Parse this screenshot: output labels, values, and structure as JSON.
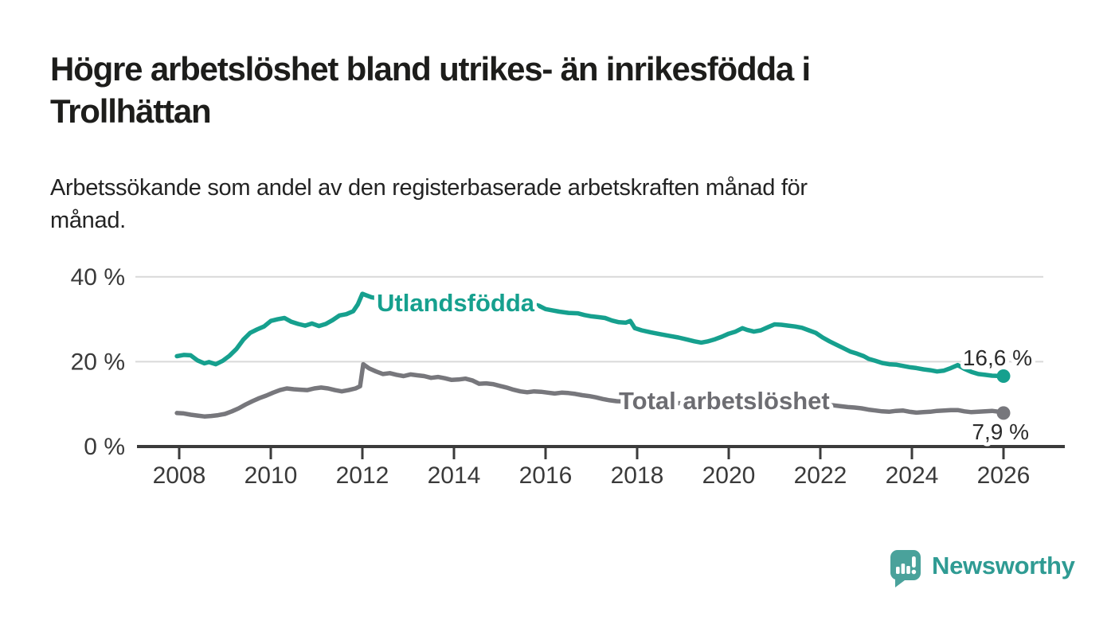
{
  "header": {
    "title_lines": [
      "Högre arbetslöshet bland utrikes- än inrikesfödda i",
      "Trollhättan"
    ],
    "subtitle_lines": [
      "Arbetssökande som andel av den registerbaserade arbetskraften månad för",
      "månad."
    ]
  },
  "footer": {
    "brand": "Newsworthy",
    "brand_color": "#2f9b93",
    "bubble_color": "#4aa29b"
  },
  "chart_data": {
    "type": "line",
    "title": "",
    "xlabel": "",
    "ylabel": "",
    "unit": "%",
    "grid": true,
    "legend_position": "inline-labels",
    "axis_color": "#3b3b3b",
    "grid_color": "#d9d9d9",
    "tick_label_color": "#3a3a3a",
    "xlim": [
      2007.6,
      2027.35
    ],
    "ylim": [
      0,
      43
    ],
    "x_ticks": [
      {
        "label": "2008",
        "value": 2008
      },
      {
        "label": "2010",
        "value": 2010
      },
      {
        "label": "2012",
        "value": 2012
      },
      {
        "label": "2014",
        "value": 2014
      },
      {
        "label": "2016",
        "value": 2016
      },
      {
        "label": "2018",
        "value": 2018
      },
      {
        "label": "2020",
        "value": 2020
      },
      {
        "label": "2022",
        "value": 2022
      },
      {
        "label": "2024",
        "value": 2024
      },
      {
        "label": "2026",
        "value": 2026
      }
    ],
    "y_ticks": [
      {
        "label": "40 %",
        "value": 40
      },
      {
        "label": "20 %",
        "value": 20
      },
      {
        "label": "0 %",
        "value": 0
      }
    ],
    "series": [
      {
        "name": "Utlandsfödda",
        "color": "#16a08e",
        "label_color": "#16a08e",
        "end_label": "16,6 %",
        "end_value": 16.6,
        "points": [
          [
            2007.95,
            21.3
          ],
          [
            2008.1,
            21.6
          ],
          [
            2008.25,
            21.5
          ],
          [
            2008.4,
            20.3
          ],
          [
            2008.55,
            19.6
          ],
          [
            2008.65,
            19.9
          ],
          [
            2008.8,
            19.4
          ],
          [
            2008.95,
            20.2
          ],
          [
            2009.1,
            21.4
          ],
          [
            2009.25,
            23.0
          ],
          [
            2009.4,
            25.2
          ],
          [
            2009.55,
            26.8
          ],
          [
            2009.7,
            27.6
          ],
          [
            2009.85,
            28.3
          ],
          [
            2010.0,
            29.6
          ],
          [
            2010.15,
            30.0
          ],
          [
            2010.3,
            30.3
          ],
          [
            2010.45,
            29.4
          ],
          [
            2010.6,
            28.9
          ],
          [
            2010.75,
            28.5
          ],
          [
            2010.9,
            29.0
          ],
          [
            2011.05,
            28.4
          ],
          [
            2011.2,
            28.9
          ],
          [
            2011.35,
            29.8
          ],
          [
            2011.5,
            30.9
          ],
          [
            2011.65,
            31.2
          ],
          [
            2011.8,
            31.9
          ],
          [
            2011.9,
            33.5
          ],
          [
            2012.0,
            36.0
          ],
          [
            2012.1,
            35.6
          ],
          [
            2012.2,
            35.2
          ],
          [
            2012.4,
            34.8
          ],
          [
            2012.7,
            34.5
          ],
          [
            2013.0,
            34.3
          ],
          [
            2013.4,
            34.1
          ],
          [
            2013.8,
            33.9
          ],
          [
            2014.2,
            33.7
          ],
          [
            2014.6,
            33.6
          ],
          [
            2015.0,
            33.5
          ],
          [
            2015.4,
            33.4
          ],
          [
            2015.7,
            33.6
          ],
          [
            2015.85,
            33.2
          ],
          [
            2016.0,
            32.4
          ],
          [
            2016.15,
            32.1
          ],
          [
            2016.3,
            31.8
          ],
          [
            2016.5,
            31.5
          ],
          [
            2016.7,
            31.4
          ],
          [
            2016.85,
            31.0
          ],
          [
            2017.0,
            30.7
          ],
          [
            2017.15,
            30.5
          ],
          [
            2017.3,
            30.3
          ],
          [
            2017.45,
            29.7
          ],
          [
            2017.6,
            29.3
          ],
          [
            2017.75,
            29.2
          ],
          [
            2017.85,
            29.6
          ],
          [
            2017.95,
            27.9
          ],
          [
            2018.1,
            27.4
          ],
          [
            2018.3,
            26.9
          ],
          [
            2018.5,
            26.5
          ],
          [
            2018.7,
            26.1
          ],
          [
            2018.9,
            25.7
          ],
          [
            2019.1,
            25.2
          ],
          [
            2019.25,
            24.8
          ],
          [
            2019.4,
            24.5
          ],
          [
            2019.55,
            24.8
          ],
          [
            2019.7,
            25.3
          ],
          [
            2019.85,
            25.9
          ],
          [
            2020.0,
            26.6
          ],
          [
            2020.15,
            27.1
          ],
          [
            2020.3,
            27.9
          ],
          [
            2020.4,
            27.5
          ],
          [
            2020.55,
            27.1
          ],
          [
            2020.7,
            27.4
          ],
          [
            2020.85,
            28.1
          ],
          [
            2021.0,
            28.8
          ],
          [
            2021.15,
            28.7
          ],
          [
            2021.3,
            28.5
          ],
          [
            2021.45,
            28.3
          ],
          [
            2021.6,
            28.0
          ],
          [
            2021.75,
            27.4
          ],
          [
            2021.9,
            26.8
          ],
          [
            2022.05,
            25.7
          ],
          [
            2022.2,
            24.8
          ],
          [
            2022.35,
            24.0
          ],
          [
            2022.5,
            23.2
          ],
          [
            2022.65,
            22.4
          ],
          [
            2022.8,
            21.9
          ],
          [
            2022.95,
            21.3
          ],
          [
            2023.05,
            20.7
          ],
          [
            2023.2,
            20.2
          ],
          [
            2023.35,
            19.7
          ],
          [
            2023.5,
            19.4
          ],
          [
            2023.65,
            19.3
          ],
          [
            2023.8,
            19.0
          ],
          [
            2023.95,
            18.7
          ],
          [
            2024.1,
            18.5
          ],
          [
            2024.25,
            18.2
          ],
          [
            2024.4,
            18.0
          ],
          [
            2024.55,
            17.7
          ],
          [
            2024.7,
            17.9
          ],
          [
            2024.85,
            18.5
          ],
          [
            2025.0,
            19.2
          ],
          [
            2025.15,
            18.3
          ],
          [
            2025.3,
            17.6
          ],
          [
            2025.45,
            17.1
          ],
          [
            2025.6,
            16.9
          ],
          [
            2025.75,
            16.7
          ],
          [
            2026.0,
            16.6
          ]
        ]
      },
      {
        "name": "Total arbetslöshet",
        "color": "#77777c",
        "label_color": "#6d6d72",
        "end_label": "7,9 %",
        "end_value": 7.9,
        "points": [
          [
            2007.95,
            7.9
          ],
          [
            2008.1,
            7.8
          ],
          [
            2008.25,
            7.5
          ],
          [
            2008.4,
            7.3
          ],
          [
            2008.55,
            7.1
          ],
          [
            2008.7,
            7.2
          ],
          [
            2008.85,
            7.4
          ],
          [
            2009.0,
            7.7
          ],
          [
            2009.15,
            8.3
          ],
          [
            2009.3,
            9.0
          ],
          [
            2009.45,
            9.9
          ],
          [
            2009.6,
            10.7
          ],
          [
            2009.75,
            11.4
          ],
          [
            2009.9,
            12.0
          ],
          [
            2010.05,
            12.7
          ],
          [
            2010.2,
            13.3
          ],
          [
            2010.35,
            13.7
          ],
          [
            2010.5,
            13.5
          ],
          [
            2010.65,
            13.4
          ],
          [
            2010.8,
            13.3
          ],
          [
            2010.95,
            13.7
          ],
          [
            2011.1,
            13.9
          ],
          [
            2011.25,
            13.7
          ],
          [
            2011.4,
            13.3
          ],
          [
            2011.55,
            13.0
          ],
          [
            2011.7,
            13.3
          ],
          [
            2011.85,
            13.7
          ],
          [
            2011.95,
            14.2
          ],
          [
            2012.02,
            19.4
          ],
          [
            2012.15,
            18.4
          ],
          [
            2012.3,
            17.7
          ],
          [
            2012.45,
            17.1
          ],
          [
            2012.6,
            17.3
          ],
          [
            2012.75,
            16.9
          ],
          [
            2012.9,
            16.6
          ],
          [
            2013.05,
            17.0
          ],
          [
            2013.2,
            16.8
          ],
          [
            2013.35,
            16.6
          ],
          [
            2013.5,
            16.2
          ],
          [
            2013.65,
            16.4
          ],
          [
            2013.8,
            16.1
          ],
          [
            2013.95,
            15.7
          ],
          [
            2014.1,
            15.8
          ],
          [
            2014.25,
            16.0
          ],
          [
            2014.4,
            15.6
          ],
          [
            2014.55,
            14.8
          ],
          [
            2014.7,
            14.9
          ],
          [
            2014.85,
            14.7
          ],
          [
            2015.0,
            14.3
          ],
          [
            2015.15,
            13.9
          ],
          [
            2015.3,
            13.4
          ],
          [
            2015.45,
            13.0
          ],
          [
            2015.6,
            12.8
          ],
          [
            2015.75,
            13.0
          ],
          [
            2015.9,
            12.9
          ],
          [
            2016.05,
            12.7
          ],
          [
            2016.2,
            12.5
          ],
          [
            2016.35,
            12.7
          ],
          [
            2016.5,
            12.6
          ],
          [
            2016.65,
            12.4
          ],
          [
            2016.8,
            12.1
          ],
          [
            2016.95,
            11.9
          ],
          [
            2017.1,
            11.6
          ],
          [
            2017.25,
            11.2
          ],
          [
            2017.4,
            10.9
          ],
          [
            2017.55,
            10.7
          ],
          [
            2017.8,
            10.6
          ],
          [
            2018.2,
            10.4
          ],
          [
            2018.6,
            10.3
          ],
          [
            2019.0,
            10.2
          ],
          [
            2019.5,
            10.1
          ],
          [
            2020.0,
            10.0
          ],
          [
            2020.5,
            9.9
          ],
          [
            2021.0,
            9.9
          ],
          [
            2021.5,
            9.8
          ],
          [
            2022.0,
            9.8
          ],
          [
            2022.3,
            9.7
          ],
          [
            2022.45,
            9.5
          ],
          [
            2022.6,
            9.3
          ],
          [
            2022.75,
            9.2
          ],
          [
            2022.9,
            9.0
          ],
          [
            2023.05,
            8.7
          ],
          [
            2023.2,
            8.5
          ],
          [
            2023.35,
            8.3
          ],
          [
            2023.5,
            8.2
          ],
          [
            2023.65,
            8.4
          ],
          [
            2023.8,
            8.5
          ],
          [
            2023.95,
            8.2
          ],
          [
            2024.1,
            8.0
          ],
          [
            2024.25,
            8.1
          ],
          [
            2024.4,
            8.2
          ],
          [
            2024.55,
            8.4
          ],
          [
            2024.7,
            8.5
          ],
          [
            2024.85,
            8.6
          ],
          [
            2025.0,
            8.6
          ],
          [
            2025.15,
            8.3
          ],
          [
            2025.3,
            8.1
          ],
          [
            2025.45,
            8.2
          ],
          [
            2025.6,
            8.3
          ],
          [
            2025.75,
            8.4
          ],
          [
            2025.9,
            8.2
          ],
          [
            2026.0,
            7.9
          ]
        ]
      }
    ]
  }
}
